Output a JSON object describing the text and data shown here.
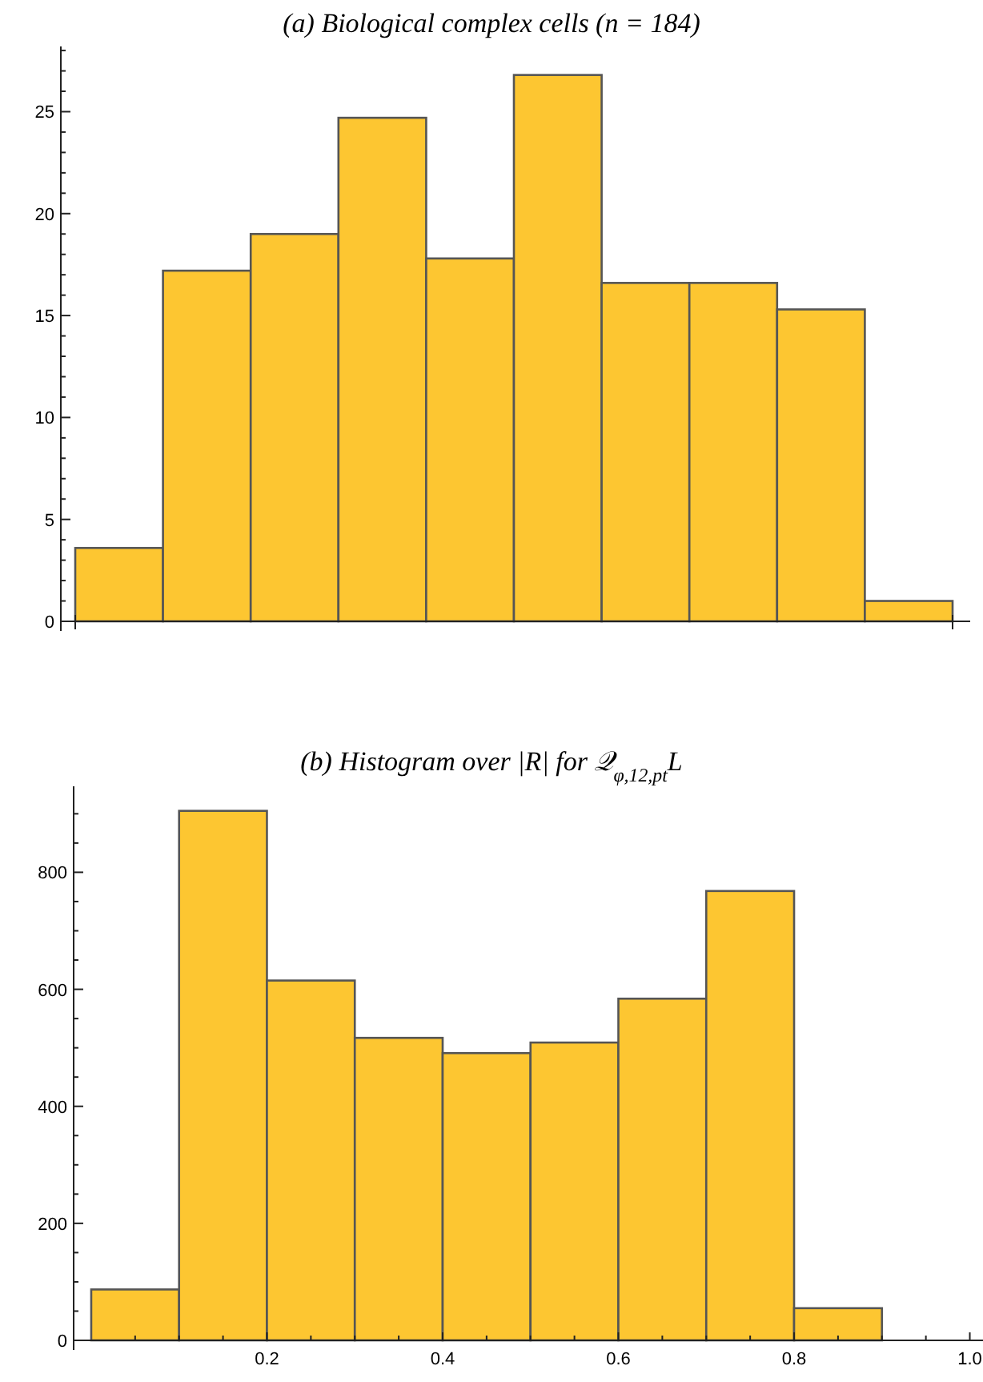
{
  "chart_data": [
    {
      "type": "histogram",
      "title": "(a) Biological complex cells (n = 184)",
      "color": "#fdc631",
      "categories": [
        null,
        null,
        null,
        null,
        null,
        null,
        null,
        null,
        null,
        null
      ],
      "values": [
        3.6,
        17.2,
        19.0,
        24.7,
        17.8,
        26.8,
        16.6,
        16.6,
        15.3,
        1.0
      ],
      "ylim": [
        0,
        28.2
      ],
      "yticks": [
        0,
        {
          "value": 1,
          "label": null
        },
        {
          "value": 2,
          "label": null
        },
        {
          "value": 3,
          "label": null
        },
        {
          "value": 4,
          "label": null
        },
        5,
        {
          "value": 6,
          "label": null
        },
        {
          "value": 7,
          "label": null
        },
        {
          "value": 8,
          "label": null
        },
        {
          "value": 9,
          "label": null
        },
        10,
        {
          "value": 11,
          "label": null
        },
        {
          "value": 12,
          "label": null
        },
        {
          "value": 13,
          "label": null
        },
        {
          "value": 14,
          "label": null
        },
        15,
        {
          "value": 16,
          "label": null
        },
        {
          "value": 17,
          "label": null
        },
        {
          "value": 18,
          "label": null
        },
        {
          "value": 19,
          "label": null
        },
        20,
        {
          "value": 21,
          "label": null
        },
        {
          "value": 22,
          "label": null
        },
        {
          "value": 23,
          "label": null
        },
        {
          "value": 24,
          "label": null
        },
        25,
        {
          "value": 26,
          "label": null
        },
        {
          "value": 27,
          "label": null
        },
        {
          "value": 28,
          "label": null
        }
      ],
      "tick_labels": "y",
      "grid": false
    },
    {
      "type": "histogram",
      "title": "(b) Histogram over |R| for 𝒬$_{φ,12,pt}$L",
      "color": "#fdc631",
      "bins": [
        0,
        0.1,
        0.2,
        0.3,
        0.4,
        0.5,
        0.6,
        0.7,
        0.8,
        0.9
      ],
      "values": [
        87,
        905,
        615,
        517,
        491,
        509,
        584,
        768,
        55
      ],
      "xlim": [
        -0.02,
        1.015
      ],
      "xticks": [
        {
          "value": 0.05,
          "label": null
        },
        {
          "value": 0.1,
          "label": null
        },
        {
          "value": 0.15,
          "label": null
        },
        {
          "value": 0.2,
          "label": "0.2"
        },
        {
          "value": 0.25,
          "label": null
        },
        {
          "value": 0.3,
          "label": null
        },
        {
          "value": 0.35,
          "label": null
        },
        {
          "value": 0.4,
          "label": "0.4"
        },
        {
          "value": 0.45,
          "label": null
        },
        {
          "value": 0.5,
          "label": null
        },
        {
          "value": 0.55,
          "label": null
        },
        {
          "value": 0.6,
          "label": "0.6"
        },
        {
          "value": 0.65,
          "label": null
        },
        {
          "value": 0.7,
          "label": null
        },
        {
          "value": 0.75,
          "label": null
        },
        {
          "value": 0.8,
          "label": "0.8"
        },
        {
          "value": 0.85,
          "label": null
        },
        {
          "value": 0.9,
          "label": null
        },
        {
          "value": 0.95,
          "label": null
        },
        {
          "value": 1.0,
          "label": "1.0"
        }
      ],
      "ylim": [
        0,
        947
      ],
      "yticks": [
        0,
        {
          "value": 50,
          "label": null
        },
        {
          "value": 100,
          "label": null
        },
        {
          "value": 150,
          "label": null
        },
        200,
        {
          "value": 250,
          "label": null
        },
        {
          "value": 300,
          "label": null
        },
        {
          "value": 350,
          "label": null
        },
        400,
        {
          "value": 450,
          "label": null
        },
        {
          "value": 500,
          "label": null
        },
        {
          "value": 550,
          "label": null
        },
        600,
        {
          "value": 650,
          "label": null
        },
        {
          "value": 700,
          "label": null
        },
        {
          "value": 750,
          "label": null
        },
        800,
        {
          "value": 850,
          "label": null
        },
        {
          "value": 900,
          "label": null
        }
      ],
      "grid": false
    }
  ]
}
